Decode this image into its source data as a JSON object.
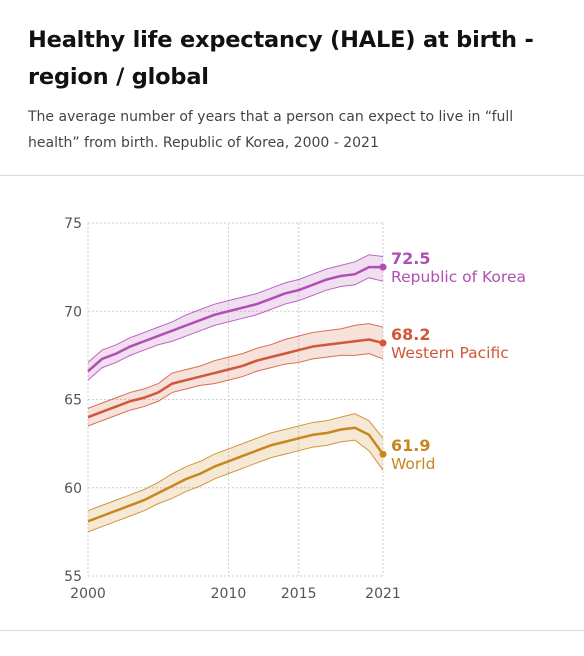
{
  "header": {
    "title": "Healthy life expectancy (HALE) at birth - region / global",
    "subtitle": "The average number of years that a person can expect to live in “full health” from birth. Republic of Korea, 2000 - 2021"
  },
  "chart_data": {
    "type": "line",
    "title": "Healthy life expectancy (HALE) at birth - region / global",
    "xlabel": "",
    "ylabel": "",
    "xlim": [
      2000,
      2021
    ],
    "ylim": [
      55,
      75
    ],
    "x_ticks": [
      2000,
      2010,
      2015,
      2021
    ],
    "y_ticks": [
      55,
      60,
      65,
      70,
      75
    ],
    "grid": true,
    "x": [
      2000,
      2001,
      2002,
      2003,
      2004,
      2005,
      2006,
      2007,
      2008,
      2009,
      2010,
      2011,
      2012,
      2013,
      2014,
      2015,
      2016,
      2017,
      2018,
      2019,
      2020,
      2021
    ],
    "series": [
      {
        "name": "Republic of Korea",
        "end_value": "72.5",
        "color": "#b04fb3",
        "values": [
          66.6,
          67.3,
          67.6,
          68.0,
          68.3,
          68.6,
          68.9,
          69.2,
          69.5,
          69.8,
          70.0,
          70.2,
          70.4,
          70.7,
          71.0,
          71.2,
          71.5,
          71.8,
          72.0,
          72.1,
          72.5,
          72.5
        ],
        "upper": [
          67.1,
          67.8,
          68.1,
          68.5,
          68.8,
          69.1,
          69.4,
          69.8,
          70.1,
          70.4,
          70.6,
          70.8,
          71.0,
          71.3,
          71.6,
          71.8,
          72.1,
          72.4,
          72.6,
          72.8,
          73.2,
          73.1
        ],
        "lower": [
          66.1,
          66.8,
          67.1,
          67.5,
          67.8,
          68.1,
          68.3,
          68.6,
          68.9,
          69.2,
          69.4,
          69.6,
          69.8,
          70.1,
          70.4,
          70.6,
          70.9,
          71.2,
          71.4,
          71.5,
          71.9,
          71.7
        ]
      },
      {
        "name": "Western Pacific",
        "end_value": "68.2",
        "color": "#d0573a",
        "values": [
          64.0,
          64.3,
          64.6,
          64.9,
          65.1,
          65.4,
          65.9,
          66.1,
          66.3,
          66.5,
          66.7,
          66.9,
          67.2,
          67.4,
          67.6,
          67.8,
          68.0,
          68.1,
          68.2,
          68.3,
          68.4,
          68.2
        ],
        "upper": [
          64.5,
          64.8,
          65.1,
          65.4,
          65.6,
          65.9,
          66.5,
          66.7,
          66.9,
          67.2,
          67.4,
          67.6,
          67.9,
          68.1,
          68.4,
          68.6,
          68.8,
          68.9,
          69.0,
          69.2,
          69.3,
          69.1
        ],
        "lower": [
          63.5,
          63.8,
          64.1,
          64.4,
          64.6,
          64.9,
          65.4,
          65.6,
          65.8,
          65.9,
          66.1,
          66.3,
          66.6,
          66.8,
          67.0,
          67.1,
          67.3,
          67.4,
          67.5,
          67.5,
          67.6,
          67.3
        ]
      },
      {
        "name": "World",
        "end_value": "61.9",
        "color": "#c8861e",
        "values": [
          58.1,
          58.4,
          58.7,
          59.0,
          59.3,
          59.7,
          60.1,
          60.5,
          60.8,
          61.2,
          61.5,
          61.8,
          62.1,
          62.4,
          62.6,
          62.8,
          63.0,
          63.1,
          63.3,
          63.4,
          63.0,
          61.9
        ],
        "upper": [
          58.7,
          59.0,
          59.3,
          59.6,
          59.9,
          60.3,
          60.8,
          61.2,
          61.5,
          61.9,
          62.2,
          62.5,
          62.8,
          63.1,
          63.3,
          63.5,
          63.7,
          63.8,
          64.0,
          64.2,
          63.8,
          62.8
        ],
        "lower": [
          57.5,
          57.8,
          58.1,
          58.4,
          58.7,
          59.1,
          59.4,
          59.8,
          60.1,
          60.5,
          60.8,
          61.1,
          61.4,
          61.7,
          61.9,
          62.1,
          62.3,
          62.4,
          62.6,
          62.7,
          62.1,
          61.0
        ]
      }
    ]
  }
}
